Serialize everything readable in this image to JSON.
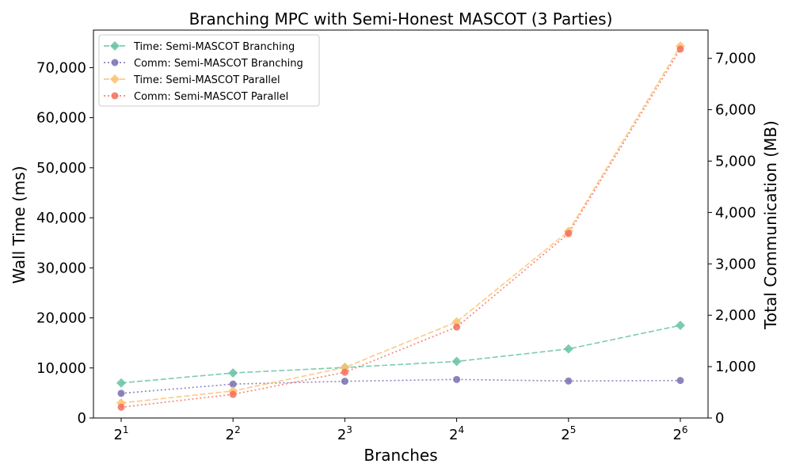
{
  "chart_data": {
    "type": "line",
    "title": "Branching MPC with Semi-Honest MASCOT (3 Parties)",
    "xlabel": "Branches",
    "ylabel_left": "Wall Time (ms)",
    "ylabel_right": "Total Communication (MB)",
    "x_tick_labels": [
      {
        "base": "2",
        "exp": "1"
      },
      {
        "base": "2",
        "exp": "2"
      },
      {
        "base": "2",
        "exp": "3"
      },
      {
        "base": "2",
        "exp": "4"
      },
      {
        "base": "2",
        "exp": "5"
      },
      {
        "base": "2",
        "exp": "6"
      }
    ],
    "x": [
      2,
      4,
      8,
      16,
      32,
      64
    ],
    "x_scale": "log2",
    "ylim_left": [
      0,
      77500
    ],
    "ylim_right": [
      0,
      7550
    ],
    "yticks_left": [
      "0",
      "10,000",
      "20,000",
      "30,000",
      "40,000",
      "50,000",
      "60,000",
      "70,000"
    ],
    "yticks_right": [
      "0",
      "1,000",
      "2,000",
      "3,000",
      "4,000",
      "5,000",
      "6,000",
      "7,000"
    ],
    "grid": false,
    "legend_position": "top-left",
    "series": [
      {
        "name": "Time: Semi-MASCOT Branching",
        "axis": "left",
        "color": "#66c2a5",
        "marker": "diamond",
        "linestyle": "dashed",
        "values": [
          7000,
          9000,
          10100,
          11300,
          13800,
          18500
        ]
      },
      {
        "name": "Comm: Semi-MASCOT Branching",
        "axis": "right",
        "color": "#7570b3",
        "marker": "circle",
        "linestyle": "dotted",
        "values": [
          480,
          660,
          715,
          750,
          720,
          730
        ]
      },
      {
        "name": "Time: Semi-MASCOT Parallel",
        "axis": "left",
        "color": "#fdc170",
        "marker": "diamond",
        "linestyle": "dashed",
        "values": [
          3000,
          5400,
          10100,
          19200,
          37300,
          74300
        ]
      },
      {
        "name": "Comm: Semi-MASCOT Parallel",
        "axis": "right",
        "color": "#f46d5a",
        "marker": "circle",
        "linestyle": "dotted",
        "values": [
          210,
          460,
          890,
          1770,
          3590,
          7180
        ]
      }
    ]
  }
}
